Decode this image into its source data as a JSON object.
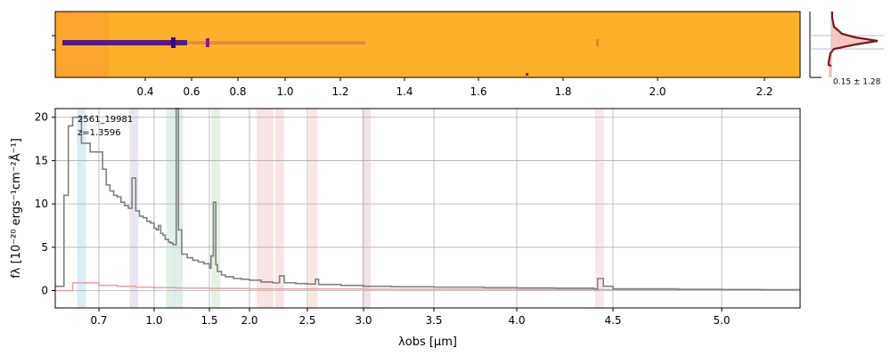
{
  "figure": {
    "top_axis_ticks": [
      "0.4",
      "0.6",
      "0.8",
      "1.0",
      "1.2",
      "1.4",
      "1.6",
      "1.8",
      "2.0",
      "2.2"
    ],
    "side_panel_label": "0.15 ± 1.28",
    "annotation_id": "2561_19981",
    "annotation_z": "z=1.3596",
    "colors": {
      "spectrum": "#808080",
      "error": "#e8a0a0",
      "image_bg": "#fcb12b",
      "trace": "#3a0090",
      "profile_line": "#7a1a1a",
      "profile_fill": "#f4c0c0"
    }
  },
  "chart_data": {
    "type": "line",
    "title": "",
    "xlabel": "λobs [μm]",
    "ylabel": "fλ [10⁻²⁰ ergs⁻¹cm⁻²Å⁻¹]",
    "x_scale": "nonlinear (pixel-spaced)",
    "xlim": [
      0.6,
      5.4
    ],
    "ylim": [
      -2,
      21
    ],
    "xticks": [
      "0.7",
      "1.0",
      "1.5",
      "2.0",
      "2.5",
      "3.0",
      "3.5",
      "4.0",
      "4.5",
      "5.0"
    ],
    "yticks": [
      "0",
      "5",
      "10",
      "15",
      "20"
    ],
    "grid": true,
    "series": [
      {
        "x": [
          0.6,
          0.62,
          0.63,
          0.64,
          0.66,
          0.68,
          0.7,
          0.72,
          0.74,
          0.76,
          0.78,
          0.8,
          0.82,
          0.84,
          0.86,
          0.88,
          0.9,
          0.92,
          0.94,
          0.96,
          0.98,
          1.0,
          1.02,
          1.04,
          1.06,
          1.08,
          1.1,
          1.13,
          1.15,
          1.17,
          1.2,
          1.22,
          1.25,
          1.3,
          1.35,
          1.4,
          1.45,
          1.5,
          1.52,
          1.55,
          1.58,
          1.6,
          1.65,
          1.7,
          1.8,
          1.9,
          2.0,
          2.1,
          2.2,
          2.26,
          2.3,
          2.4,
          2.5,
          2.57,
          2.6,
          2.8,
          3.0,
          3.2,
          3.5,
          3.8,
          4.0,
          4.2,
          4.4,
          4.42,
          4.45,
          4.5,
          4.8,
          5.0,
          5.2,
          5.4
        ],
        "y": [
          0.5,
          11,
          19,
          20,
          17,
          16,
          16,
          14,
          12.2,
          11.5,
          11,
          10.8,
          10.2,
          9.8,
          9.5,
          13,
          9.2,
          8.6,
          8.4,
          8,
          7.8,
          7.2,
          7,
          7.5,
          6.6,
          6.4,
          5.9,
          5.6,
          5.5,
          5.3,
          21,
          7,
          4.2,
          3.8,
          3.5,
          3.3,
          3.1,
          2.6,
          4,
          10.2,
          3,
          2.2,
          1.8,
          1.6,
          1.4,
          1.3,
          1.2,
          1.0,
          0.9,
          1.7,
          0.9,
          0.8,
          0.75,
          1.3,
          0.7,
          0.6,
          0.5,
          0.45,
          0.4,
          0.35,
          0.3,
          0.28,
          0.2,
          1.4,
          0.5,
          0.2,
          0.15,
          0.12,
          0.1,
          0.1
        ]
      },
      {
        "x": [
          0.6,
          0.64,
          0.7,
          0.8,
          0.9,
          1.0,
          1.2,
          1.5,
          2.0,
          3.0,
          4.0,
          5.0,
          5.4
        ],
        "y": [
          0,
          0.9,
          0.6,
          0.5,
          0.4,
          0.35,
          0.3,
          0.25,
          0.2,
          0.15,
          0.12,
          0.1,
          0.1
        ]
      }
    ],
    "bands": [
      {
        "x": 0.66,
        "color": "#cfe8f7"
      },
      {
        "x": 0.89,
        "color": "#e6ddf0"
      },
      {
        "x": 1.15,
        "color": "#d8ede0"
      },
      {
        "x": 1.22,
        "color": "#d8e8ee"
      },
      {
        "x": 1.58,
        "color": "#dfeedb"
      },
      {
        "x": 2.1,
        "color": "#f7dddd"
      },
      {
        "x": 2.17,
        "color": "#f7dddd"
      },
      {
        "x": 2.26,
        "color": "#f7dddd"
      },
      {
        "x": 2.55,
        "color": "#fae0db"
      },
      {
        "x": 3.02,
        "color": "#f1dbe6"
      },
      {
        "x": 4.43,
        "color": "#f8e0e6"
      }
    ]
  }
}
